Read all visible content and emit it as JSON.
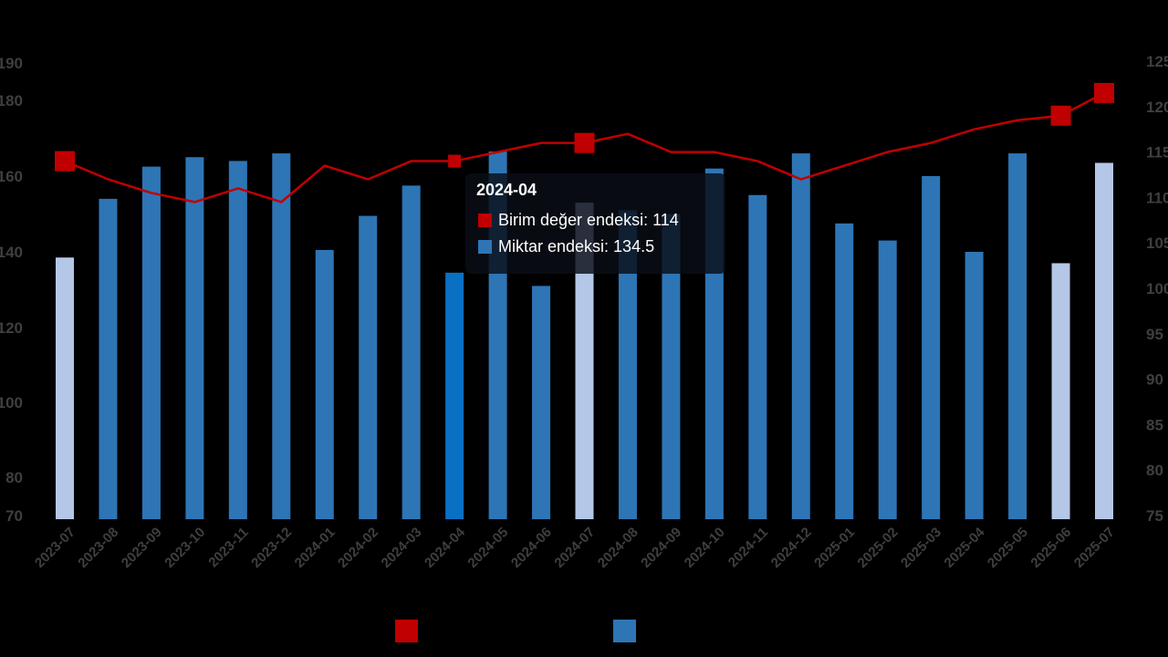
{
  "chart_data": {
    "type": "bar+line",
    "categories": [
      "2023-07",
      "2023-08",
      "2023-09",
      "2023-10",
      "2023-11",
      "2023-12",
      "2024-01",
      "2024-02",
      "2024-03",
      "2024-04",
      "2024-05",
      "2024-06",
      "2024-07",
      "2024-08",
      "2024-09",
      "2024-10",
      "2024-11",
      "2024-12",
      "2025-01",
      "2025-02",
      "2025-03",
      "2025-04",
      "2025-05",
      "2025-06",
      "2025-07"
    ],
    "series": [
      {
        "name": "Miktar endeksi",
        "kind": "bar",
        "axis": "left",
        "color": "#2e75b6",
        "values": [
          138.5,
          154,
          162.5,
          165,
          164,
          166,
          140.5,
          149.5,
          157.5,
          134.5,
          166.5,
          131,
          153,
          151,
          150,
          162,
          155,
          166,
          147.5,
          143,
          160,
          140,
          166,
          137,
          163.5
        ],
        "light_bar_indices": [
          0,
          12,
          23,
          24
        ],
        "light_color": "#b4c7e7",
        "highlight_index": 9,
        "highlight_color": "#0a70c4"
      },
      {
        "name": "Birim değer endeksi",
        "kind": "line",
        "axis": "right",
        "color": "#c00000",
        "values": [
          114,
          112,
          110.5,
          109.5,
          111,
          109.5,
          113.5,
          112,
          114,
          114,
          115,
          116,
          116,
          117,
          115,
          115,
          114,
          112,
          113.5,
          115,
          116,
          117.5,
          118.5,
          119,
          121.5
        ],
        "square_marker_indices": [
          0,
          12,
          23,
          24
        ],
        "small_marker_index": 9
      }
    ],
    "y_left": {
      "ticks": [
        "70",
        "80",
        "100",
        "120",
        "140",
        "160",
        "180",
        "190"
      ],
      "ylim": [
        70,
        190
      ]
    },
    "y_right": {
      "ticks": [
        "75",
        "80",
        "85",
        "90",
        "95",
        "100",
        "105",
        "110",
        "115",
        "120",
        "125"
      ],
      "ylim": [
        75,
        125
      ]
    },
    "tooltip": {
      "title": "2024-04",
      "line_label": "Birim değer endeksi: 114",
      "bar_label": "Miktar endeksi: 134.5"
    },
    "legend": {
      "placement": "bottom",
      "swatches": [
        "#c00000",
        "#2e75b6"
      ]
    }
  }
}
